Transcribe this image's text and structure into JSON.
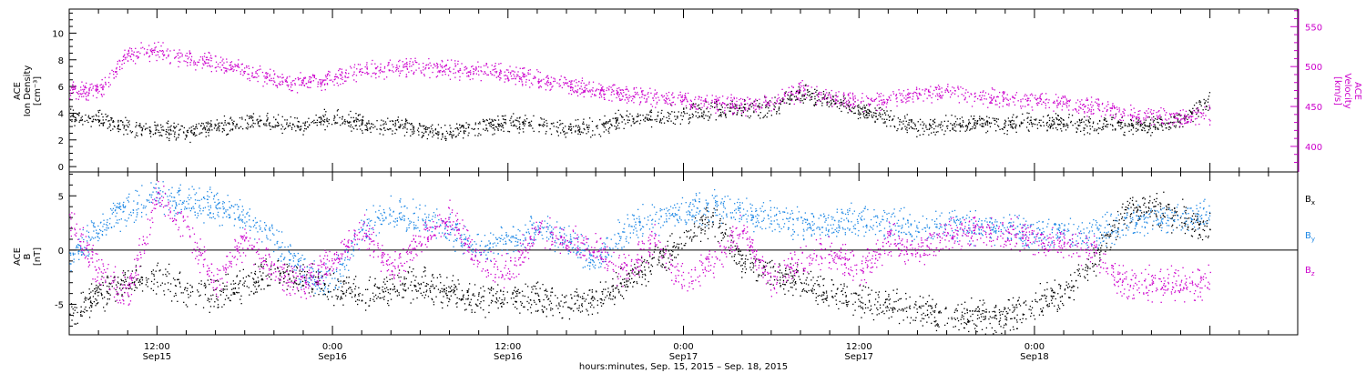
{
  "chart_data": [
    {
      "type": "scatter",
      "panel": "top",
      "ylabel": [
        "ACE",
        "Ion Density",
        "[cm⁻³]"
      ],
      "ylim": [
        -0.4,
        11.8
      ],
      "yticks": [
        0,
        2,
        4,
        6,
        8,
        10
      ],
      "ylabel_right": [
        "ACE",
        "Velocity",
        "[km/s]"
      ],
      "ylim_right": [
        368,
        572
      ],
      "yticks_right": [
        400,
        450,
        500,
        550
      ],
      "xlim": [
        0,
        84
      ],
      "series": [
        {
          "name": "density",
          "color": "#000000",
          "x": [
            0,
            2,
            4,
            6,
            8,
            10,
            12,
            14,
            16,
            18,
            20,
            22,
            24,
            26,
            28,
            30,
            32,
            34,
            36,
            38,
            40,
            42,
            44,
            46,
            48,
            50,
            52,
            54,
            56,
            58,
            60,
            62,
            64,
            66,
            68,
            70,
            72,
            74,
            76,
            78
          ],
          "y": [
            3.8,
            3.6,
            3.0,
            2.8,
            2.6,
            3.0,
            3.2,
            3.4,
            3.0,
            3.8,
            3.2,
            3.0,
            2.8,
            2.6,
            3.0,
            3.4,
            3.2,
            2.8,
            3.0,
            3.6,
            3.8,
            4.0,
            4.2,
            4.4,
            4.5,
            5.5,
            5.0,
            4.2,
            3.6,
            3.0,
            3.2,
            3.3,
            3.2,
            3.4,
            3.3,
            3.2,
            3.2,
            3.1,
            3.4,
            5.0
          ]
        },
        {
          "name": "velocity",
          "color": "#cc00cc",
          "x": [
            0,
            2,
            4,
            6,
            8,
            10,
            12,
            14,
            16,
            18,
            20,
            22,
            24,
            26,
            28,
            30,
            32,
            34,
            36,
            38,
            40,
            42,
            44,
            46,
            48,
            50,
            52,
            54,
            56,
            58,
            60,
            62,
            64,
            66,
            68,
            70,
            72,
            74,
            76,
            78
          ],
          "y": [
            470,
            470,
            515,
            520,
            510,
            505,
            495,
            485,
            480,
            485,
            495,
            498,
            500,
            497,
            495,
            492,
            485,
            478,
            470,
            467,
            462,
            458,
            455,
            452,
            458,
            470,
            462,
            455,
            460,
            465,
            470,
            462,
            460,
            458,
            455,
            450,
            443,
            438,
            436,
            440
          ]
        }
      ]
    },
    {
      "type": "scatter",
      "panel": "bottom",
      "ylabel": [
        "ACE",
        "B",
        "[nT]"
      ],
      "ylim": [
        -7.8,
        7.2
      ],
      "yticks": [
        -5,
        0,
        5
      ],
      "xlim": [
        0,
        84
      ],
      "xticks": [
        {
          "x": 6,
          "label": "12:00",
          "sub": "Sep15"
        },
        {
          "x": 18,
          "label": "0:00",
          "sub": "Sep16"
        },
        {
          "x": 30,
          "label": "12:00",
          "sub": "Sep16"
        },
        {
          "x": 42,
          "label": "0:00",
          "sub": "Sep17"
        },
        {
          "x": 54,
          "label": "12:00",
          "sub": "Sep17"
        },
        {
          "x": 66,
          "label": "0:00",
          "sub": "Sep18"
        }
      ],
      "xlabel": "hours:minutes, Sep. 15, 2015 – Sep. 18, 2015",
      "legend": [
        {
          "base": "B",
          "sub": "x",
          "color": "#000000"
        },
        {
          "base": "B",
          "sub": "y",
          "color": "#1e88e5"
        },
        {
          "base": "B",
          "sub": "z",
          "color": "#cc00cc"
        }
      ],
      "series": [
        {
          "name": "Bx",
          "color": "#000000",
          "x": [
            0,
            2,
            4,
            6,
            8,
            10,
            12,
            14,
            16,
            18,
            20,
            22,
            24,
            26,
            28,
            30,
            32,
            34,
            36,
            38,
            40,
            42,
            44,
            46,
            48,
            50,
            52,
            54,
            56,
            58,
            60,
            62,
            64,
            66,
            68,
            70,
            72,
            74,
            76,
            78
          ],
          "y": [
            -6,
            -4,
            -3,
            -2.5,
            -3.5,
            -4,
            -3,
            -2,
            -2.5,
            -3.5,
            -4,
            -3.5,
            -3,
            -4,
            -4.5,
            -4.2,
            -4.5,
            -4.8,
            -4.5,
            -3,
            -1,
            1,
            3,
            -1,
            -2,
            -3,
            -4,
            -4.5,
            -5,
            -5.5,
            -5.8,
            -6,
            -6.2,
            -5,
            -4,
            -1,
            3.5,
            4,
            3,
            2
          ]
        },
        {
          "name": "By",
          "color": "#1e88e5",
          "x": [
            0,
            2,
            4,
            6,
            8,
            10,
            12,
            14,
            16,
            18,
            20,
            22,
            24,
            26,
            28,
            30,
            32,
            34,
            36,
            38,
            40,
            42,
            44,
            46,
            48,
            50,
            52,
            54,
            56,
            58,
            60,
            62,
            64,
            66,
            68,
            70,
            72,
            74,
            76,
            78
          ],
          "y": [
            -1,
            2,
            4,
            5,
            4.5,
            4,
            3,
            1,
            -2,
            -3,
            2,
            3.5,
            3,
            2,
            0,
            1,
            2,
            1,
            -1,
            2,
            3,
            3.5,
            4,
            3.5,
            3,
            2.5,
            2.5,
            3,
            2.5,
            2,
            2.5,
            2,
            2,
            1.5,
            1.5,
            1.5,
            2.5,
            3,
            3,
            3.5
          ]
        },
        {
          "name": "Bz",
          "color": "#cc00cc",
          "x": [
            0,
            2,
            4,
            6,
            8,
            10,
            12,
            14,
            16,
            18,
            20,
            22,
            24,
            26,
            28,
            30,
            32,
            34,
            36,
            38,
            40,
            42,
            44,
            46,
            48,
            50,
            52,
            54,
            56,
            58,
            60,
            62,
            64,
            66,
            68,
            70,
            72,
            74,
            76,
            78
          ],
          "y": [
            3,
            -2,
            -4,
            5,
            2,
            -3,
            1,
            -2,
            -3,
            -1,
            2,
            -2,
            1,
            3,
            -1,
            -2,
            2,
            1,
            0,
            -2,
            1,
            -3,
            -1,
            2,
            -3,
            -1,
            0,
            -2,
            1,
            0,
            1.5,
            2,
            1.5,
            1,
            0.5,
            0,
            -3,
            -3,
            -3,
            -3
          ]
        }
      ]
    }
  ]
}
